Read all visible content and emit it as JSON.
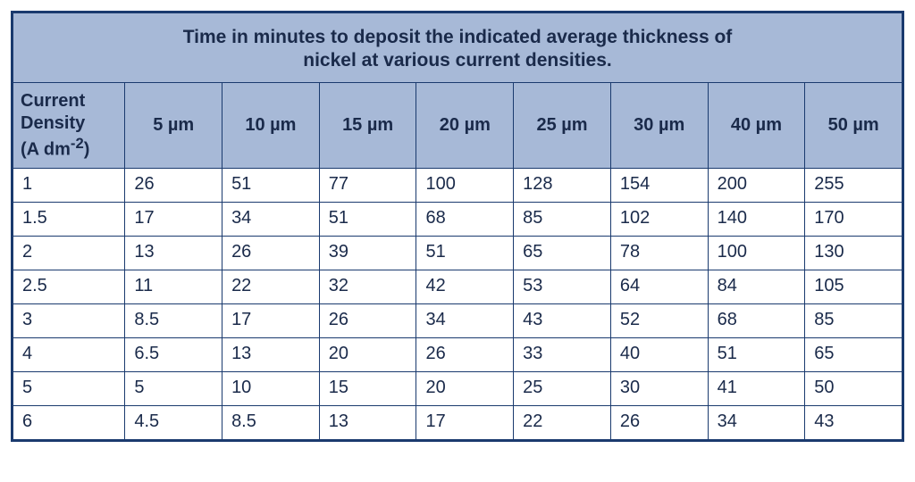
{
  "table": {
    "type": "table",
    "title_line1": "Time in minutes to deposit the indicated average thickness of",
    "title_line2": "nickel at various current densities.",
    "row_header_line1": "Current",
    "row_header_line2": "Density",
    "row_header_line3_prefix": "(A dm",
    "row_header_line3_sup": "-2",
    "row_header_line3_suffix": ")",
    "columns": [
      "5 µm",
      "10 µm",
      "15 µm",
      "20 µm",
      "25 µm",
      "30 µm",
      "40 µm",
      "50 µm"
    ],
    "row_labels": [
      "1",
      "1.5",
      "2",
      "2.5",
      "3",
      "4",
      "5",
      "6"
    ],
    "rows": [
      [
        "26",
        "51",
        "77",
        "100",
        "128",
        "154",
        "200",
        "255"
      ],
      [
        "17",
        "34",
        "51",
        "68",
        "85",
        "102",
        "140",
        "170"
      ],
      [
        "13",
        "26",
        "39",
        "51",
        "65",
        "78",
        "100",
        "130"
      ],
      [
        "11",
        "22",
        "32",
        "42",
        "53",
        "64",
        "84",
        "105"
      ],
      [
        "8.5",
        "17",
        "26",
        "34",
        "43",
        "52",
        "68",
        "85"
      ],
      [
        "6.5",
        "13",
        "20",
        "26",
        "33",
        "40",
        "51",
        "65"
      ],
      [
        "5",
        "10",
        "15",
        "20",
        "25",
        "30",
        "41",
        "50"
      ],
      [
        "4.5",
        "8.5",
        "13",
        "17",
        "22",
        "26",
        "34",
        "43"
      ]
    ],
    "colors": {
      "border": "#1a3a6e",
      "header_bg": "#a7b9d7",
      "text": "#1a2a4a",
      "cell_bg": "#ffffff"
    },
    "font_sizes": {
      "title": 21,
      "header": 20,
      "cell": 20
    }
  }
}
